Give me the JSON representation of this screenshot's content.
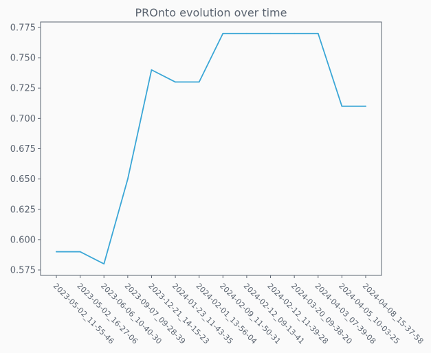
{
  "chart_data": {
    "type": "line",
    "title": "PROnto evolution over time",
    "xlabel": "",
    "ylabel": "",
    "categories": [
      "2023-05-02_11-55-46",
      "2023-05-02_16-27-06",
      "2023-06-06_10-40-30",
      "2023-09-07_09-28-39",
      "2023-12-21_14-15-23",
      "2024-01-23_11-43-35",
      "2024-02-01_13-56-04",
      "2024-02-09_11-50-31",
      "2024-02-12_09-13-41",
      "2024-02-12_11-39-28",
      "2024-03-20_09-38-20",
      "2024-04-03_07-39-08",
      "2024-04-05_10-03-25",
      "2024-04-08_15-37-58"
    ],
    "series": [
      {
        "values": [
          0.59,
          0.59,
          0.58,
          0.65,
          0.74,
          0.73,
          0.73,
          0.77,
          0.77,
          0.77,
          0.77,
          0.77,
          0.71,
          0.71
        ],
        "color": "#3aa6d6"
      }
    ],
    "ylim": [
      0.5705,
      0.7795
    ],
    "yticks": [
      {
        "value": 0.575,
        "label": "0.575"
      },
      {
        "value": 0.6,
        "label": "0.600"
      },
      {
        "value": 0.625,
        "label": "0.625"
      },
      {
        "value": 0.65,
        "label": "0.650"
      },
      {
        "value": 0.675,
        "label": "0.675"
      },
      {
        "value": 0.7,
        "label": "0.700"
      },
      {
        "value": 0.725,
        "label": "0.725"
      },
      {
        "value": 0.75,
        "label": "0.750"
      },
      {
        "value": 0.775,
        "label": "0.775"
      }
    ],
    "grid": false,
    "colors": {
      "background": "#fafafa",
      "axes": "#5b6470",
      "text": "#5b6470",
      "line": "#3aa6d6"
    }
  }
}
